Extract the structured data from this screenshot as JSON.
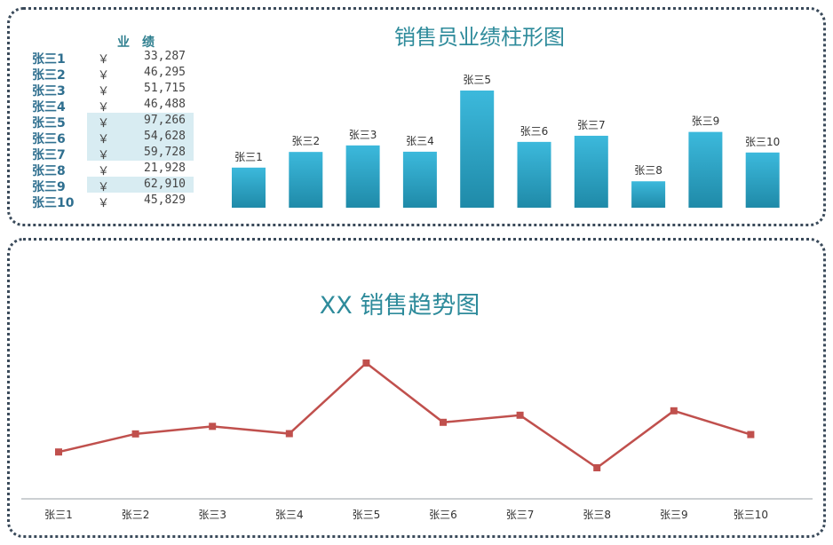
{
  "top_title": "销售员业绩柱形图",
  "bottom_title": "XX 销售趋势图",
  "table": {
    "header": "业绩",
    "currency": "￥",
    "rows": [
      {
        "name": "张三1",
        "value": "33,287",
        "highlight": false
      },
      {
        "name": "张三2",
        "value": "46,295",
        "highlight": false
      },
      {
        "name": "张三3",
        "value": "51,715",
        "highlight": false
      },
      {
        "name": "张三4",
        "value": "46,488",
        "highlight": false
      },
      {
        "name": "张三5",
        "value": "97,266",
        "highlight": true
      },
      {
        "name": "张三6",
        "value": "54,628",
        "highlight": true
      },
      {
        "name": "张三7",
        "value": "59,728",
        "highlight": true
      },
      {
        "name": "张三8",
        "value": "21,928",
        "highlight": false
      },
      {
        "name": "张三9",
        "value": "62,910",
        "highlight": true
      },
      {
        "name": "张三10",
        "value": "45,829",
        "highlight": false
      }
    ]
  },
  "chart_data": [
    {
      "type": "bar",
      "title": "销售员业绩柱形图",
      "categories": [
        "张三1",
        "张三2",
        "张三3",
        "张三4",
        "张三5",
        "张三6",
        "张三7",
        "张三8",
        "张三9",
        "张三10"
      ],
      "values": [
        33287,
        46295,
        51715,
        46488,
        97266,
        54628,
        59728,
        21928,
        62910,
        45829
      ],
      "bar_color": "#2aa6c8",
      "data_labels": "category names above bars",
      "grid": false
    },
    {
      "type": "line",
      "title": "XX 销售趋势图",
      "categories": [
        "张三1",
        "张三2",
        "张三3",
        "张三4",
        "张三5",
        "张三6",
        "张三7",
        "张三8",
        "张三9",
        "张三10"
      ],
      "values": [
        33287,
        46295,
        51715,
        46488,
        97266,
        54628,
        59728,
        21928,
        62910,
        45829
      ],
      "line_color": "#c0504d",
      "marker": "square",
      "grid": false
    }
  ]
}
